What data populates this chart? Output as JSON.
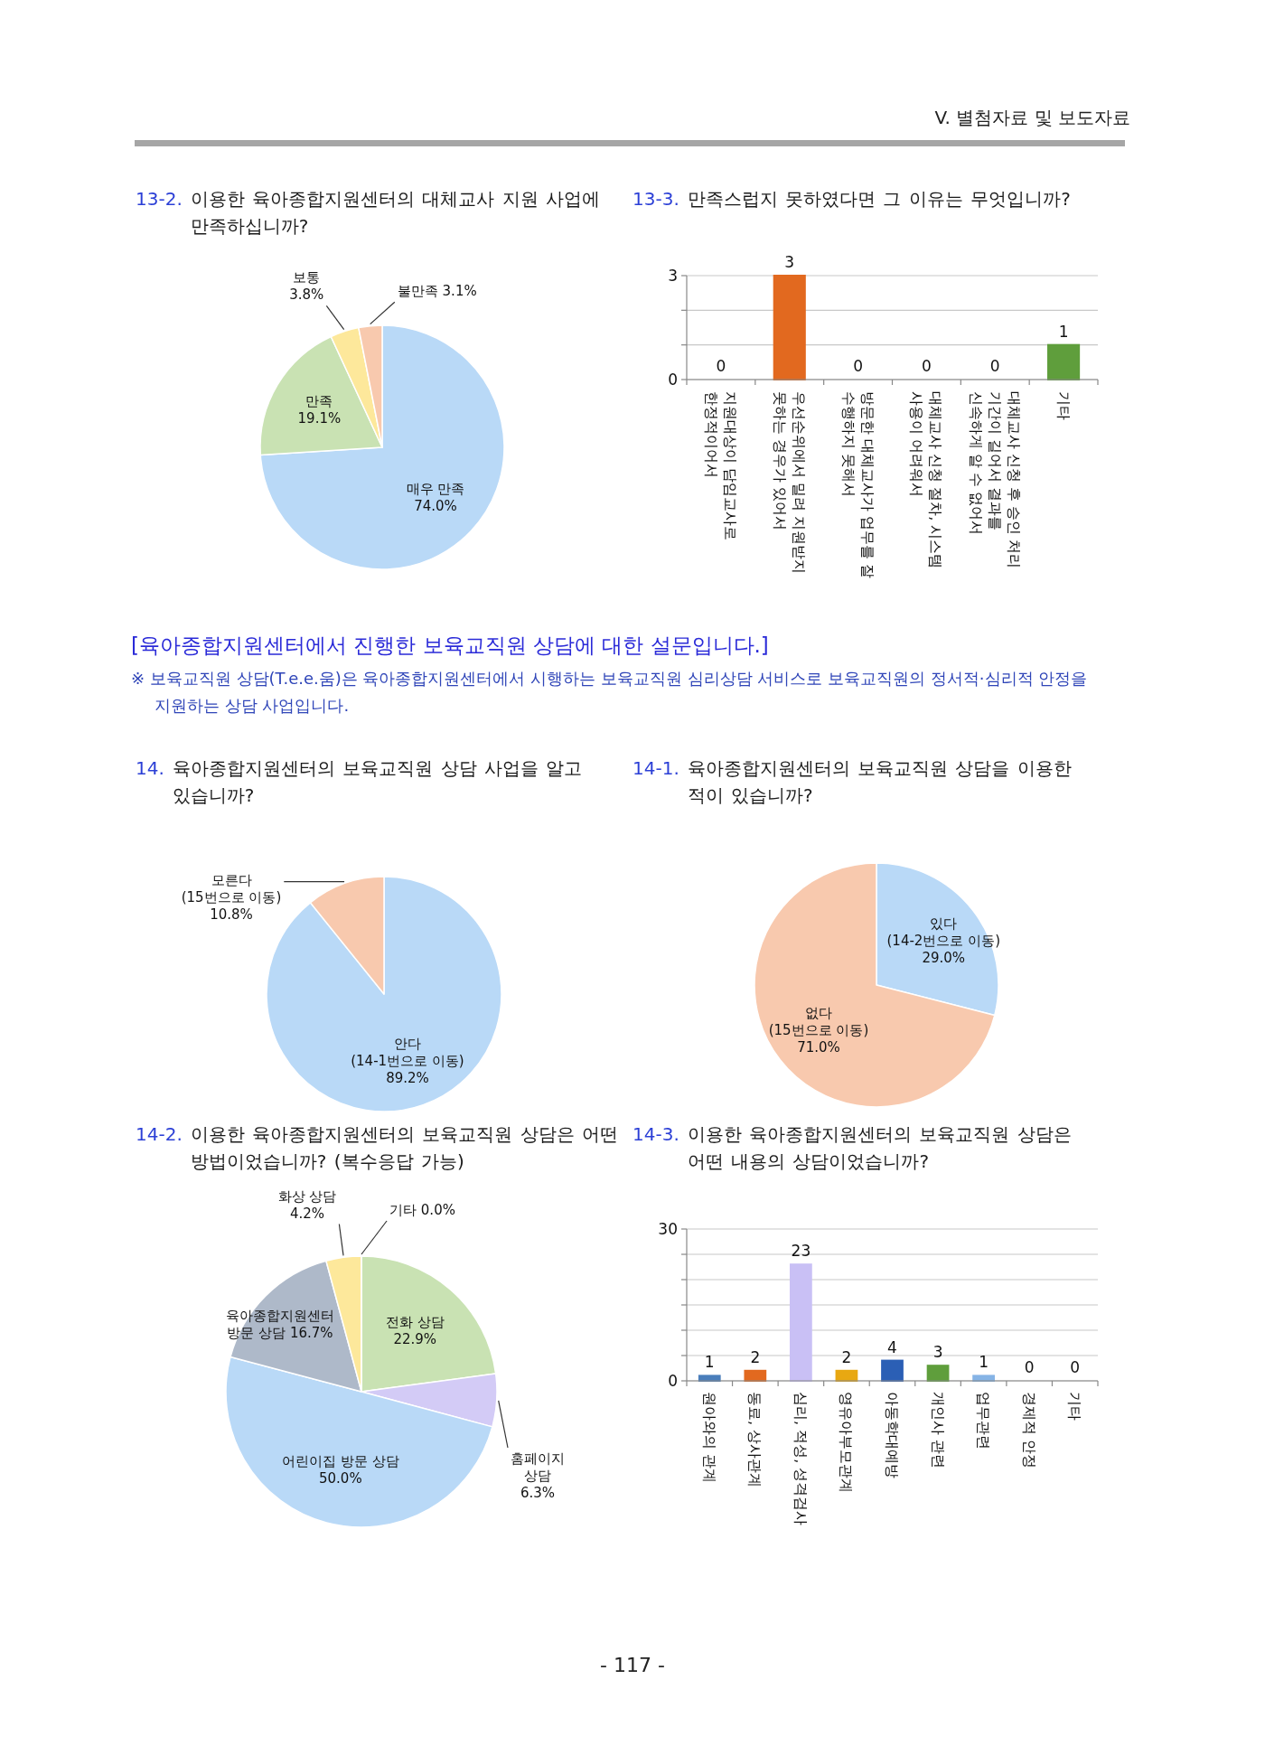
{
  "chart_data": [
    {
      "type": "other",
      "title": "V. 별첨자료 및 보도자료"
    },
    {
      "type": "pie",
      "title": "13-2. 이용한 육아종합지원센터의 대체교사 지원 사업에 만족하십니까?",
      "categories": [
        "매우 만족",
        "만족",
        "보통",
        "불만족"
      ],
      "values": [
        74.0,
        19.1,
        3.8,
        3.1
      ],
      "colors": [
        "#b9d9f7",
        "#c9e2b3",
        "#fde89b",
        "#f8c9ae"
      ],
      "value_labels": [
        "74.0%",
        "19.1%",
        "3.8%",
        "3.1%"
      ]
    },
    {
      "type": "bar",
      "title": "13-3. 만족스럽지 못하였다면 그 이유는 무엇입니까?",
      "categories": [
        "지원대상이 담임교사로\n한정적이어서",
        "우선순위에서 밀려 지원받지\n못하는 경우가 있어서",
        "방문한 대체교사가 업무를 잘\n수행하지 못해서",
        "대체교사 신청 절차, 시스템\n사용이 어려워서",
        "대체교사 신청 후 승인 처리\n기간이 길어서 결과를\n신속하게 알 수 없어서",
        "기타"
      ],
      "values": [
        0,
        3,
        0,
        0,
        0,
        1
      ],
      "colors": [
        "#4a7ebb",
        "#e2691f",
        "#7f7f7f",
        "#bfa010",
        "#2c4d8f",
        "#5f9e3c"
      ],
      "data_labels": true,
      "ylim": [
        0,
        3
      ],
      "yticks": [
        0,
        {
          "value": 1,
          "label": null
        },
        {
          "value": 2,
          "label": null
        },
        3
      ],
      "grid": "y"
    },
    {
      "type": "other",
      "title": "[육아종합지원센터에서 진행한 보육교직원 상담에 대한 설문입니다.]",
      "annotations": [
        "※ 보육교직원 상담(T.e.e.움)은 육아종합지원센터에서 시행하는 보육교직원 심리상담 서비스로 보육교직원의 정서적·심리적 안정을 지원하는 상담 사업입니다."
      ]
    },
    {
      "type": "pie",
      "title": "14. 육아종합지원센터의 보육교직원 상담 사업을 알고 있습니까?",
      "categories": [
        "안다\n(14-1번으로 이동)",
        "모른다\n(15번으로 이동)"
      ],
      "values": [
        89.2,
        10.8
      ],
      "colors": [
        "#b9d9f7",
        "#f8c9ae"
      ],
      "value_labels": [
        "89.2%",
        "10.8%"
      ]
    },
    {
      "type": "pie",
      "title": "14-1. 육아종합지원센터의 보육교직원 상담을 이용한 적이 있습니까?",
      "categories": [
        "있다\n(14-2번으로 이동)",
        "없다\n(15번으로 이동)"
      ],
      "values": [
        29.0,
        71.0
      ],
      "colors": [
        "#b9d9f7",
        "#f8c9ae"
      ],
      "value_labels": [
        "29.0%",
        "71.0%"
      ]
    },
    {
      "type": "pie",
      "title": "14-2. 이용한 육아종합지원센터의 보육교직원 상담은 어떤 방법이었습니까? (복수응답 가능)",
      "categories": [
        "전화 상담",
        "홈페이지\n상담",
        "어린이집 방문 상담",
        "육아종합지원센터\n방문 상담",
        "화상 상담",
        "기타"
      ],
      "values": [
        22.9,
        6.3,
        50.0,
        16.7,
        4.2,
        0.0
      ],
      "colors": [
        "#c9e2b3",
        "#d3cbf6",
        "#b9d9f7",
        "#aeb9c9",
        "#fde89b",
        "#f8c9ae"
      ],
      "value_labels": [
        "22.9%",
        "6.3%",
        "50.0%",
        "16.7%",
        "4.2%",
        "0.0%"
      ]
    },
    {
      "type": "bar",
      "title": "14-3. 이용한 육아종합지원센터의 보육교직원 상담은 어떤 내용의 상담이었습니까?",
      "categories": [
        "원아와의 관계",
        "동료, 상사관계",
        "심리, 적성, 성격검사",
        "영유아부모관계",
        "아동학대예방",
        "개인사 관련",
        "업무관련",
        "경제적 안정",
        "기타"
      ],
      "values": [
        1,
        2,
        23,
        2,
        4,
        3,
        1,
        0,
        0
      ],
      "colors": [
        "#4a7ebb",
        "#e2691f",
        "#c9c0f5",
        "#e8a812",
        "#2b5fb5",
        "#5f9e3c",
        "#86b4e6",
        "#c0806a",
        "#8c8c8c"
      ],
      "data_labels": true,
      "ylim": [
        0,
        30
      ],
      "yticks": [
        0,
        {
          "value": 5,
          "label": null
        },
        {
          "value": 10,
          "label": null
        },
        {
          "value": 15,
          "label": null
        },
        {
          "value": 20,
          "label": null
        },
        {
          "value": 25,
          "label": null
        },
        30
      ],
      "grid": "y"
    },
    {
      "type": "other",
      "annotations": [
        "- 117 -"
      ]
    }
  ]
}
